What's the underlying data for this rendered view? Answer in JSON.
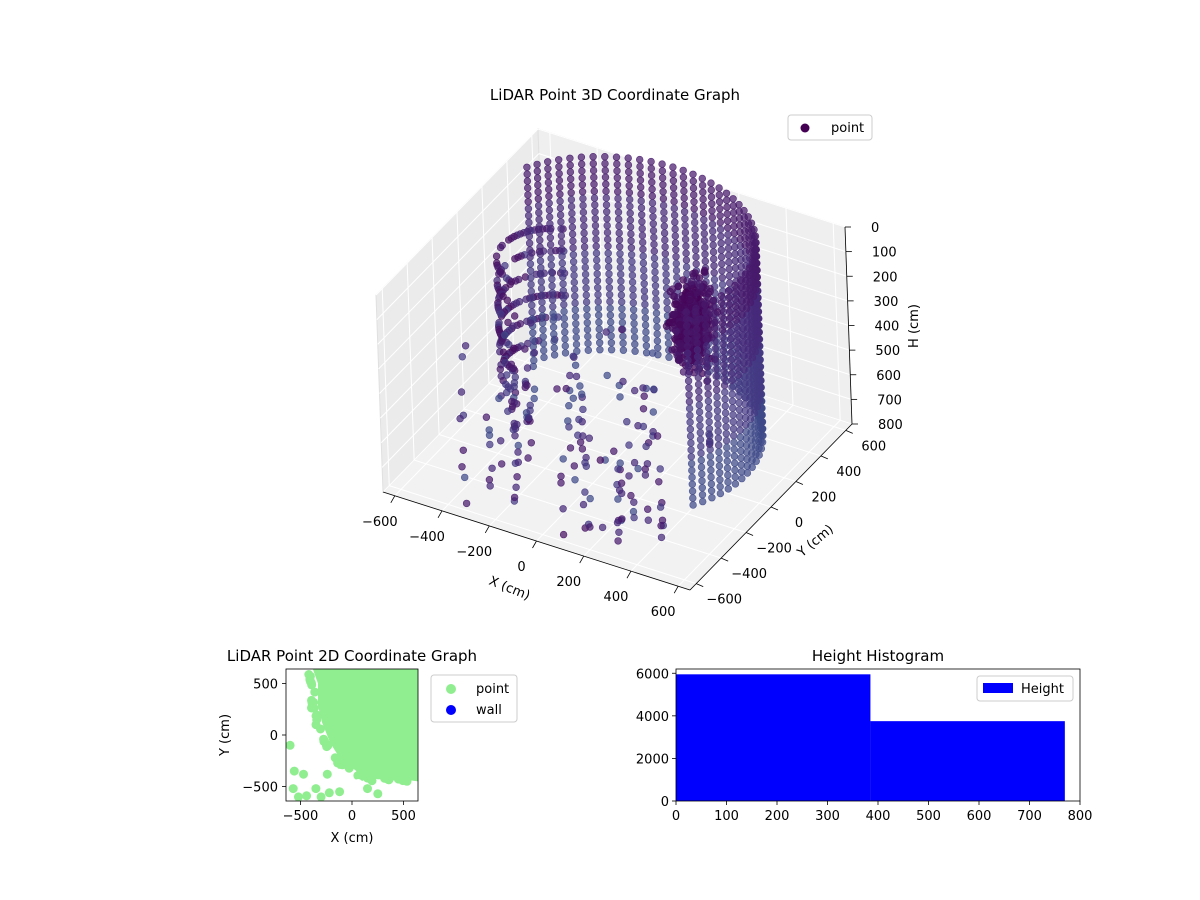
{
  "chart_data": [
    {
      "type": "scatter",
      "projection": "3d",
      "title": "LiDAR Point 3D Coordinate Graph",
      "xlabel": "X (cm)",
      "ylabel": "Y (cm)",
      "zlabel": "H (cm)",
      "xlim": [
        -650,
        650
      ],
      "ylim": [
        -650,
        650
      ],
      "zlim": [
        800,
        0
      ],
      "x_ticks": [
        -600,
        -400,
        -200,
        0,
        200,
        400,
        600
      ],
      "y_ticks": [
        -600,
        -400,
        -200,
        0,
        200,
        400,
        600
      ],
      "z_ticks": [
        0,
        100,
        200,
        300,
        400,
        500,
        600,
        700,
        800
      ],
      "x_tick_labels": [
        "−600",
        "−400",
        "−200",
        "0",
        "200",
        "400",
        "600"
      ],
      "y_tick_labels": [
        "−600",
        "−400",
        "−200",
        "0",
        "200",
        "400",
        "600"
      ],
      "z_tick_labels": [
        "0",
        "100",
        "200",
        "300",
        "400",
        "500",
        "600",
        "700",
        "800"
      ],
      "grid": true,
      "legend": {
        "position": "top-right",
        "entries": [
          "point"
        ]
      },
      "colormap": "viridis",
      "colors": {
        "series_point": "#440154"
      },
      "series": [
        {
          "name": "point",
          "structures": [
            {
              "kind": "cylindrical-wall",
              "center": [
                -80,
                120
              ],
              "radius": 560,
              "theta_deg": [
                -30,
                150
              ],
              "h_range": [
                0,
                800
              ]
            },
            {
              "kind": "arc-wall",
              "center": [
                -420,
                330
              ],
              "radius": 220,
              "theta_deg": [
                110,
                250
              ],
              "h_range": [
                300,
                800
              ]
            },
            {
              "kind": "dense-cluster",
              "center": [
                200,
                250,
                320
              ],
              "spread": [
                90,
                150,
                240
              ]
            },
            {
              "kind": "scattered-columns",
              "x_range": [
                -600,
                450
              ],
              "y_range": [
                -600,
                200
              ],
              "h_range": [
                350,
                800
              ]
            }
          ]
        }
      ]
    },
    {
      "type": "scatter",
      "title": "LiDAR Point 2D Coordinate Graph",
      "xlabel": "X (cm)",
      "ylabel": "Y (cm)",
      "xlim": [
        -640,
        640
      ],
      "ylim": [
        -640,
        640
      ],
      "x_ticks": [
        -500,
        0,
        500
      ],
      "y_ticks": [
        -500,
        0,
        500
      ],
      "x_tick_labels": [
        "−500",
        "0",
        "500"
      ],
      "y_tick_labels": [
        "−500",
        "0",
        "500"
      ],
      "legend": {
        "position": "outside-right",
        "entries": [
          "point",
          "wall"
        ]
      },
      "colors": {
        "point": "#90ee90",
        "wall": "#0000ff"
      },
      "series": [
        {
          "name": "point",
          "color": "#90ee90",
          "outline": [
            [
              -380,
              640
            ],
            [
              -330,
              500
            ],
            [
              -330,
              280
            ],
            [
              -290,
              120
            ],
            [
              -210,
              -80
            ],
            [
              -120,
              -220
            ],
            [
              80,
              -380
            ],
            [
              250,
              -430
            ],
            [
              420,
              -420
            ],
            [
              640,
              -450
            ],
            [
              640,
              640
            ]
          ]
        },
        {
          "name": "wall",
          "color": "#0000ff",
          "points": []
        }
      ]
    },
    {
      "type": "bar",
      "subtype": "histogram",
      "title": "Height Histogram",
      "xlim": [
        0,
        800
      ],
      "ylim": [
        0,
        6200
      ],
      "x_ticks": [
        0,
        100,
        200,
        300,
        400,
        500,
        600,
        700,
        800
      ],
      "y_ticks": [
        0,
        2000,
        4000,
        6000
      ],
      "bins": [
        [
          0,
          385
        ],
        [
          385,
          770
        ]
      ],
      "values": [
        5950,
        3750
      ],
      "legend": {
        "position": "top-right",
        "entries": [
          "Height"
        ]
      },
      "colors": {
        "bar": "#0000ff"
      }
    }
  ]
}
